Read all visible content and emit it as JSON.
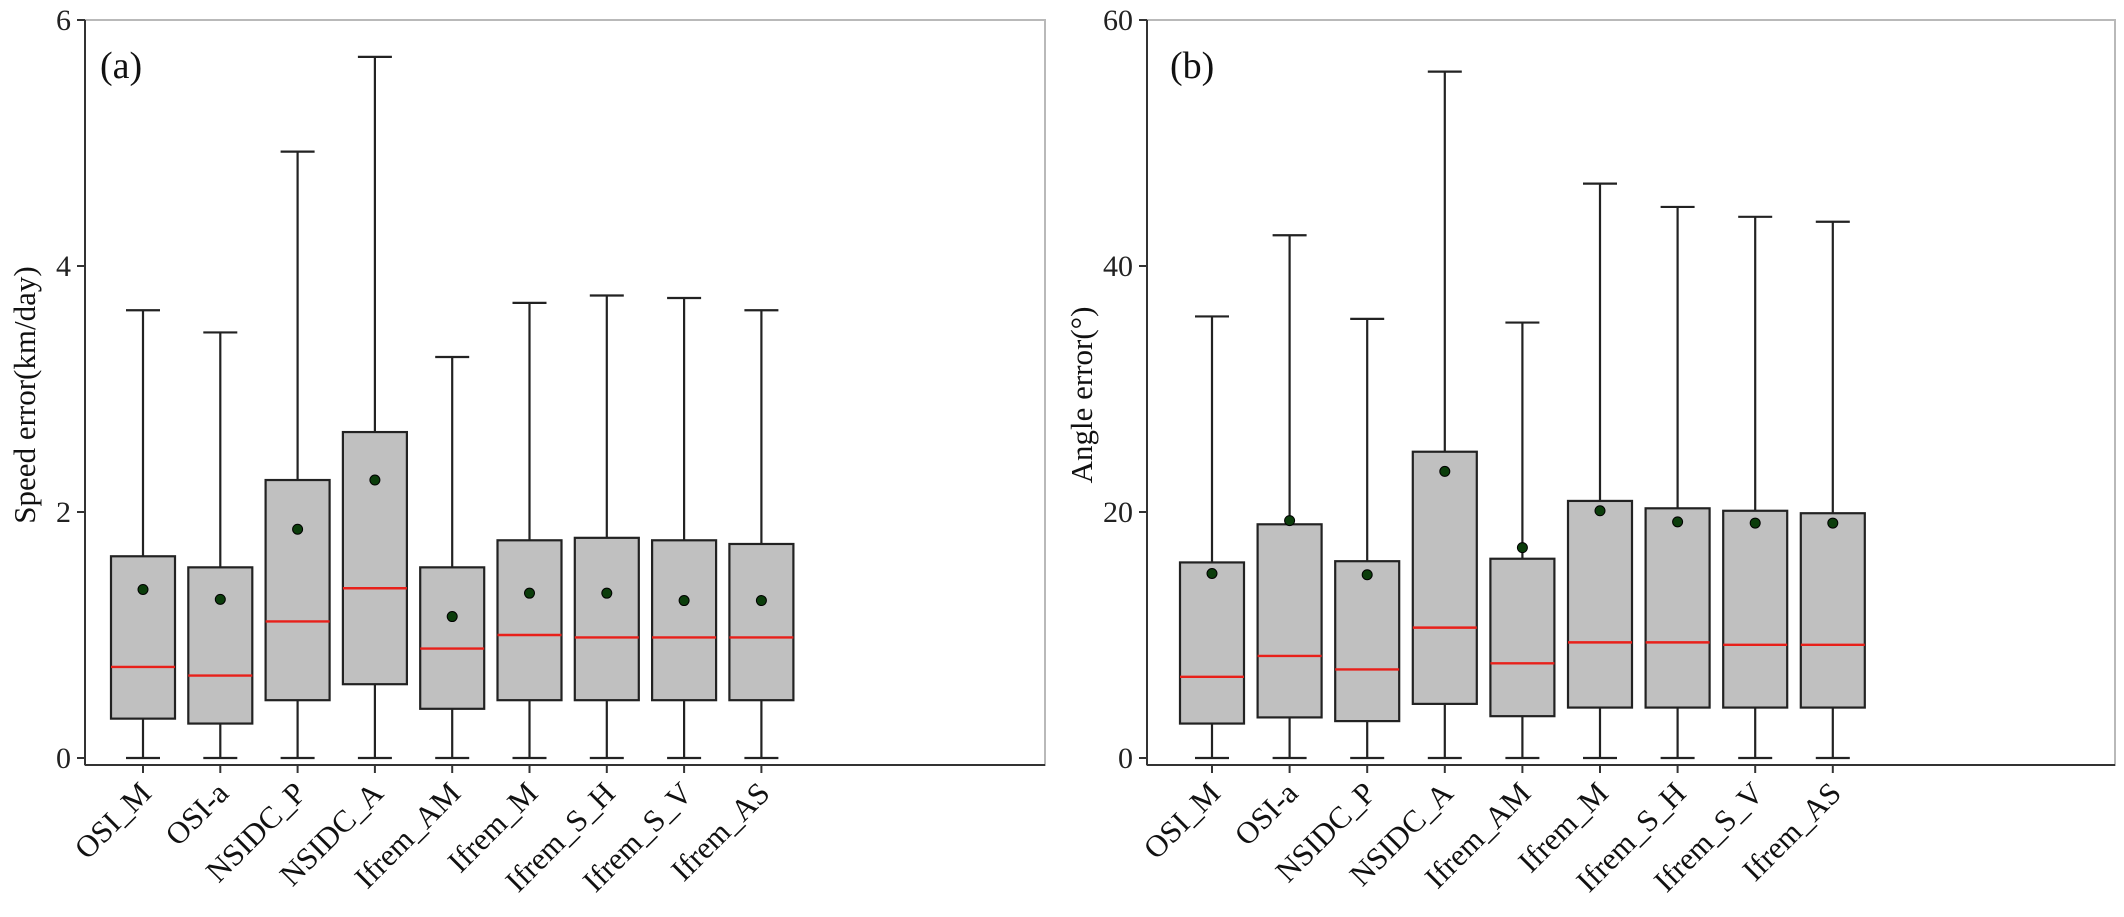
{
  "chart_data": [
    {
      "type": "box",
      "panel_tag": "(a)",
      "title": "",
      "xlabel": "",
      "ylabel": "Speed error(km/day)",
      "ylim": [
        0,
        6
      ],
      "yticks": [
        0,
        2,
        4,
        6
      ],
      "categories": [
        "OSI_M",
        "OSI-a",
        "NSIDC_P",
        "NSIDC_A",
        "Ifrem_AM",
        "Ifrem_M",
        "Ifrem_S_H",
        "Ifrem_S_V",
        "Ifrem_AS"
      ],
      "boxes": [
        {
          "min": 0,
          "q1": 0.32,
          "median": 0.74,
          "q3": 1.64,
          "max": 3.64,
          "mean": 1.37
        },
        {
          "min": 0,
          "q1": 0.28,
          "median": 0.67,
          "q3": 1.55,
          "max": 3.46,
          "mean": 1.29
        },
        {
          "min": 0,
          "q1": 0.47,
          "median": 1.11,
          "q3": 2.26,
          "max": 4.93,
          "mean": 1.86
        },
        {
          "min": 0,
          "q1": 0.6,
          "median": 1.38,
          "q3": 2.65,
          "max": 5.7,
          "mean": 2.26
        },
        {
          "min": 0,
          "q1": 0.4,
          "median": 0.89,
          "q3": 1.55,
          "max": 3.26,
          "mean": 1.15
        },
        {
          "min": 0,
          "q1": 0.47,
          "median": 1.0,
          "q3": 1.77,
          "max": 3.7,
          "mean": 1.34
        },
        {
          "min": 0,
          "q1": 0.47,
          "median": 0.98,
          "q3": 1.79,
          "max": 3.76,
          "mean": 1.34
        },
        {
          "min": 0,
          "q1": 0.47,
          "median": 0.98,
          "q3": 1.77,
          "max": 3.74,
          "mean": 1.28
        },
        {
          "min": 0,
          "q1": 0.47,
          "median": 0.98,
          "q3": 1.74,
          "max": 3.64,
          "mean": 1.28
        }
      ],
      "colors": {
        "box_fill": "#c0c0c0",
        "median": "#e8201a",
        "mean_point": "#0b3d0b"
      }
    },
    {
      "type": "box",
      "panel_tag": "(b)",
      "title": "",
      "xlabel": "",
      "ylabel": "Angle error(°)",
      "ylim": [
        0,
        60
      ],
      "yticks": [
        0,
        20,
        40,
        60
      ],
      "categories": [
        "OSI_M",
        "OSI-a",
        "NSIDC_P",
        "NSIDC_A",
        "Ifrem_AM",
        "Ifrem_M",
        "Ifrem_S_H",
        "Ifrem_S_V",
        "Ifrem_AS"
      ],
      "boxes": [
        {
          "min": 0,
          "q1": 2.8,
          "median": 6.6,
          "q3": 15.9,
          "max": 35.9,
          "mean": 15.0
        },
        {
          "min": 0,
          "q1": 3.3,
          "median": 8.3,
          "q3": 19.0,
          "max": 42.5,
          "mean": 19.3
        },
        {
          "min": 0,
          "q1": 3.0,
          "median": 7.2,
          "q3": 16.0,
          "max": 35.7,
          "mean": 14.9
        },
        {
          "min": 0,
          "q1": 4.4,
          "median": 10.6,
          "q3": 24.9,
          "max": 55.8,
          "mean": 23.3
        },
        {
          "min": 0,
          "q1": 3.4,
          "median": 7.7,
          "q3": 16.2,
          "max": 35.4,
          "mean": 17.1
        },
        {
          "min": 0,
          "q1": 4.1,
          "median": 9.4,
          "q3": 20.9,
          "max": 46.7,
          "mean": 20.1
        },
        {
          "min": 0,
          "q1": 4.1,
          "median": 9.4,
          "q3": 20.3,
          "max": 44.8,
          "mean": 19.2
        },
        {
          "min": 0,
          "q1": 4.1,
          "median": 9.2,
          "q3": 20.1,
          "max": 44.0,
          "mean": 19.1
        },
        {
          "min": 0,
          "q1": 4.1,
          "median": 9.2,
          "q3": 19.9,
          "max": 43.6,
          "mean": 19.1
        }
      ],
      "colors": {
        "box_fill": "#c0c0c0",
        "median": "#e8201a",
        "mean_point": "#0b3d0b"
      }
    }
  ]
}
